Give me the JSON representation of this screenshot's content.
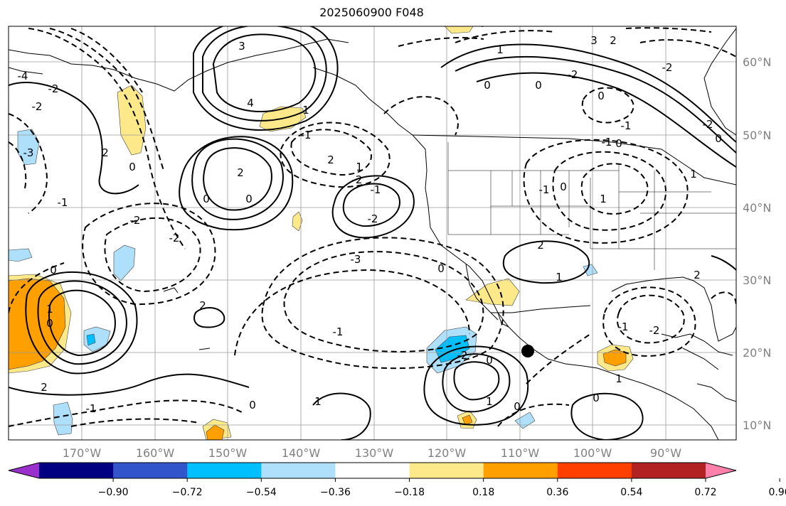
{
  "title": "2025060900 F048",
  "map": {
    "lon_labels": [
      "170°W",
      "160°W",
      "150°W",
      "140°W",
      "130°W",
      "120°W",
      "110°W",
      "100°W",
      "90°W"
    ],
    "lat_labels": [
      "60°N",
      "50°N",
      "40°N",
      "30°N",
      "20°N",
      "10°N"
    ],
    "contour_labels": [
      "-4",
      "-2",
      "-2",
      "-3",
      "2",
      "3",
      "4",
      "0",
      "-1",
      "-2",
      "-2",
      "0",
      "2",
      "0",
      "-1",
      "1",
      "2",
      "1",
      "-2",
      "-1",
      "-2",
      "0",
      "1",
      "0",
      "2",
      "-1",
      "0",
      "1",
      "2",
      "-3",
      "-1",
      "0",
      "2",
      "1",
      "0",
      "-2",
      "1",
      "0",
      "-1",
      "0",
      "1",
      "0",
      "-1",
      "-1",
      "0",
      "1",
      "-1",
      "-2",
      "2",
      "-2",
      "0",
      "1",
      "-2",
      "0",
      "3",
      "2",
      "0",
      "1",
      "0",
      "-2",
      "0"
    ]
  },
  "colorbar": {
    "ticks": [
      "−0.90",
      "−0.72",
      "−0.54",
      "−0.36",
      "−0.18",
      "0.18",
      "0.36",
      "0.54",
      "0.72",
      "0.90"
    ],
    "colors": [
      "#9a30cc",
      "#000080",
      "#3355cc",
      "#00bfff",
      "#aee0fb",
      "#ffffff",
      "#fde88a",
      "#ffa000",
      "#ff3f00",
      "#b22222",
      "#ff80aa"
    ]
  }
}
